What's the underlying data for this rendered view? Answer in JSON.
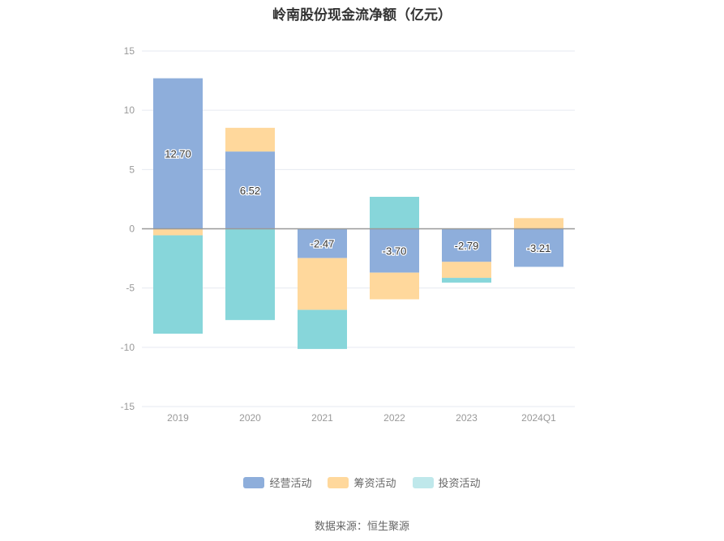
{
  "title": "岭南股份现金流净额（亿元）",
  "source": "数据来源：恒生聚源",
  "colors": {
    "operating": "#8eaedb",
    "financing": "#ffd89c",
    "investing": "#87d6da",
    "legend_investing": "#bfe8eb",
    "grid": "#e6e9f0",
    "axis": "#999999",
    "tick": "#999999",
    "label": "#333333"
  },
  "chart_data": {
    "type": "bar",
    "stacked": true,
    "title": "岭南股份现金流净额（亿元）",
    "categories": [
      "2019",
      "2020",
      "2021",
      "2022",
      "2023",
      "2024Q1"
    ],
    "ylim": [
      -15,
      15
    ],
    "yticks": [
      15,
      10,
      5,
      0,
      -5,
      -10,
      -15
    ],
    "grid": true,
    "legend_position": "bottom",
    "series": [
      {
        "name": "经营活动",
        "key": "operating",
        "values": [
          12.7,
          6.52,
          -2.47,
          -3.7,
          -2.79,
          -3.21
        ],
        "labels": [
          "12.70",
          "6.52",
          "-2.47",
          "-3.70",
          "-2.79",
          "-3.21"
        ]
      },
      {
        "name": "筹资活动",
        "key": "financing",
        "values": [
          -0.55,
          2.0,
          -4.37,
          -2.25,
          -1.35,
          0.9
        ]
      },
      {
        "name": "投资活动",
        "key": "investing",
        "values": [
          -8.3,
          -7.7,
          -3.3,
          2.7,
          -0.4,
          0
        ]
      }
    ]
  }
}
